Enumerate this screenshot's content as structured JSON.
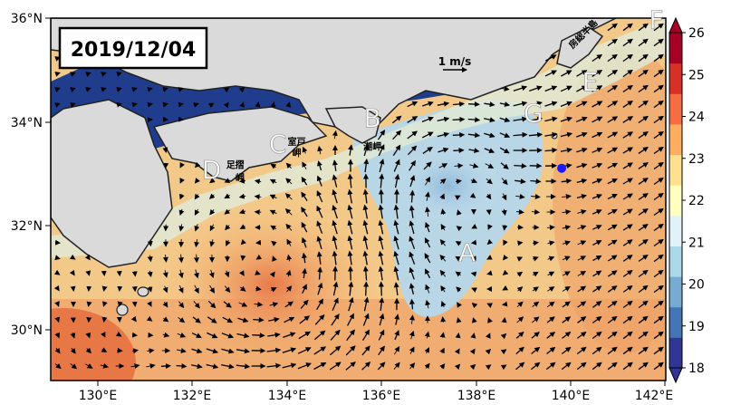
{
  "map": {
    "date_label": "2019/12/04",
    "scale_arrow_label": "1 m/s",
    "lat_ticks": [
      "36°N",
      "34°N",
      "32°N",
      "30°N"
    ],
    "lon_ticks": [
      "130°E",
      "132°E",
      "134°E",
      "136°E",
      "138°E",
      "140°E",
      "142°E"
    ],
    "lat_values": [
      36,
      34,
      32,
      30
    ],
    "lon_values": [
      130,
      132,
      134,
      136,
      138,
      140,
      142
    ],
    "extent": {
      "lon": [
        129,
        142
      ],
      "lat": [
        29,
        36
      ]
    },
    "region_labels": [
      {
        "text": "A",
        "lon": 137.8,
        "lat": 31.3
      },
      {
        "text": "B",
        "lon": 135.8,
        "lat": 33.9
      },
      {
        "text": "C",
        "lon": 133.8,
        "lat": 33.4
      },
      {
        "text": "D",
        "lon": 132.4,
        "lat": 32.9
      },
      {
        "text": "E",
        "lon": 140.4,
        "lat": 34.6
      },
      {
        "text": "F",
        "lon": 141.8,
        "lat": 35.8
      },
      {
        "text": "G",
        "lon": 139.2,
        "lat": 34.0
      }
    ],
    "place_names": [
      {
        "text": "室戸",
        "lon": 134.2,
        "lat": 33.55
      },
      {
        "text": "岬",
        "lon": 134.2,
        "lat": 33.33
      },
      {
        "text": "潮岬",
        "lon": 135.8,
        "lat": 33.45
      },
      {
        "text": "足摺",
        "lon": 132.9,
        "lat": 33.1
      },
      {
        "text": "岬",
        "lon": 133.0,
        "lat": 32.85
      },
      {
        "text": "房総半島",
        "lon": 140.3,
        "lat": 35.65
      }
    ],
    "station": {
      "lon": 139.8,
      "lat": 33.1,
      "color": "#1a1aff"
    }
  },
  "colorbar": {
    "ticks": [
      "26",
      "25",
      "24",
      "23",
      "22",
      "21",
      "20",
      "19",
      "18"
    ],
    "values": [
      26,
      25,
      24,
      23,
      22,
      21,
      20,
      19,
      18
    ],
    "min": 18,
    "max": 26,
    "colors": [
      "#313695",
      "#4575b4",
      "#74add1",
      "#abd9e9",
      "#e0f3f8",
      "#ffffbf",
      "#fee090",
      "#fdae61",
      "#f46d43",
      "#d73027",
      "#a50026"
    ]
  }
}
